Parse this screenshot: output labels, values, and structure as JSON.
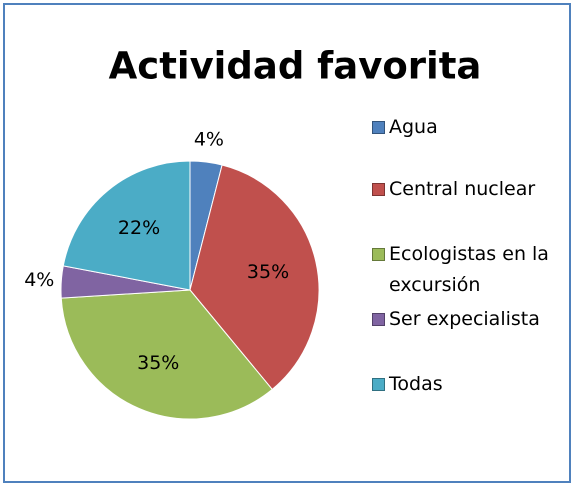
{
  "chart_data": {
    "type": "pie",
    "title": "Actividad favorita",
    "categories": [
      "Agua",
      "Central nuclear",
      "Ecologistas en la excursión",
      "Ser expecialista",
      "Todas"
    ],
    "values": [
      4,
      35,
      35,
      4,
      22
    ],
    "value_labels": [
      "4%",
      "35%",
      "35%",
      "4%",
      "22%"
    ],
    "colors": [
      "#4f81bd",
      "#c0504d",
      "#9bbb59",
      "#8064a2",
      "#4bacc6"
    ],
    "legend": "right"
  }
}
